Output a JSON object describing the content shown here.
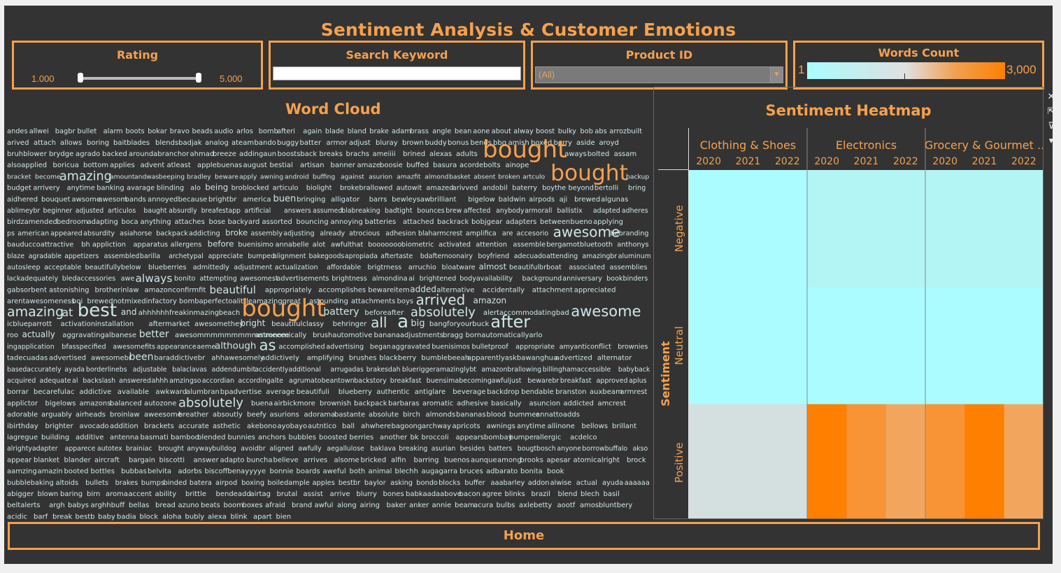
{
  "dashboard": {
    "title": "Sentiment Analysis & Customer Emotions",
    "home_label": "Home"
  },
  "filters": {
    "rating": {
      "label": "Rating",
      "min": "1.000",
      "max": "5.000",
      "selected_fraction_low": 0.0,
      "selected_fraction_high": 1.0
    },
    "search": {
      "label": "Search Keyword",
      "value": ""
    },
    "product": {
      "label": "Product ID",
      "value": "(All)"
    },
    "words_count": {
      "label": "Words Count",
      "min": "1",
      "max": "3,000"
    }
  },
  "colors": {
    "accent": "#f5a14d",
    "background": "#333333",
    "cloud_text": "#cfe7e7",
    "cloud_highlight": "#f5a14d",
    "cold": "#aafcff",
    "neutral": "#d2e2e0",
    "hot": "#ff7f00"
  },
  "word_cloud": {
    "title": "Word Cloud",
    "rows": [
      [
        "andes",
        "allwei",
        "bagbr",
        "bullet",
        "alarm",
        "boots",
        "bokar",
        "bravo",
        "beads",
        "audio",
        "arlos",
        "bomb",
        "afteri",
        "again",
        "blade",
        "bland",
        "brake",
        "adam",
        "brass",
        "angle",
        "bean",
        "aone",
        "about",
        "alway",
        "boost",
        "bulky",
        "bob",
        "abs",
        "arrozbuilt"
      ],
      [
        "arived",
        "attach",
        "allows",
        "boring",
        "baitblades",
        "blendsbadjak",
        "analog",
        "ateam",
        "bando",
        "buggy",
        "batter",
        "armor",
        "adjust",
        "bluray",
        "brown",
        "buddy",
        "bonus",
        "bends",
        "bbq",
        "amish",
        "boxed",
        "berry",
        "aside",
        "aroyd"
      ],
      [
        "bruhblower",
        "brydge",
        "agrado",
        "backed",
        "aroundabranchor",
        "ahmad",
        "breeze",
        "addingaun",
        "boostsback",
        "breaks",
        "brachs",
        "ameiiii",
        "brined",
        "alexas",
        "adults",
        "bought",
        "aways",
        "bolted",
        "assam"
      ],
      [
        "alsoapplied",
        "boricua",
        "bottom",
        "applies",
        "advent",
        "atleast",
        "applebuenas",
        "august",
        "bestial",
        "artisan",
        "banner",
        "amaze",
        "boosie",
        "buffed",
        "basura",
        "acordebolts",
        "ainope"
      ],
      [
        "bracket",
        "become",
        "amazing",
        "amount",
        "andwas",
        "beeping",
        "bradley",
        "beware",
        "apply",
        "awning",
        "android",
        "buffing",
        "against",
        "asurion",
        "amazfit",
        "almond",
        "basket",
        "absent",
        "broken",
        "artculo",
        "bought",
        "backup"
      ],
      [
        "budget",
        "arrivery",
        "anytime",
        "banking",
        "avarage",
        "blinding",
        "alo",
        "being",
        "broblocked",
        "articulo",
        "biolight",
        "brokebrallowed",
        "autowit",
        "amazed",
        "arivved",
        "andobil",
        "baterry",
        "boythe",
        "beyond",
        "bertolli",
        "bring"
      ],
      [
        "aidhered",
        "bouquet",
        "awsome",
        "awesom",
        "bands",
        "annoyed",
        "because",
        "brightbr",
        "america",
        "buen",
        "bringing",
        "alligator",
        "barrs",
        "bewleysaw",
        "brilliant",
        "bigelow",
        "baldwin",
        "airpods",
        "aji",
        "brewed",
        "algunas"
      ],
      [
        "ablimeybr",
        "beginner",
        "adjusted",
        "articulos",
        "baught",
        "absurdly",
        "breafestapp",
        "artificial",
        "answers",
        "assumed",
        "blabreaking",
        "badtight",
        "bounces",
        "brew",
        "affected",
        "anybody",
        "armorall",
        "ballistix",
        "adapted",
        "adheres"
      ],
      [
        "birdzamended",
        "bedroom",
        "adapting",
        "boca",
        "anything",
        "attaches",
        "bose",
        "backyard",
        "assorted",
        "bouncing",
        "annoying",
        "batteries",
        "attached",
        "backrack",
        "bobjgear",
        "adapters",
        "between",
        "bueno",
        "applying"
      ],
      [
        "ps",
        "american",
        "appeared",
        "absurdity",
        "asiahorse",
        "backpack",
        "addicting",
        "broke",
        "assembly",
        "adjusting",
        "already",
        "atrocious",
        "adhesion",
        "blaharmcrest",
        "amplifica",
        "are",
        "accesorio",
        "awesome",
        "bebranding"
      ],
      [
        "bauducco",
        "attractive",
        "bh",
        "appliction",
        "apparatus",
        "allergens",
        "before",
        "buenisimo",
        "annabelle",
        "alot",
        "awfulthat",
        "booooooo",
        "biometric",
        "activated",
        "attention",
        "assemble",
        "bergamot",
        "bluetooth",
        "anthonys"
      ],
      [
        "blaze",
        "agradable",
        "appetizers",
        "assembled",
        "barilla",
        "archetypal",
        "appreciate",
        "bumped",
        "alignment",
        "bakegoods",
        "apropiada",
        "aftertaste",
        "bdafternoonairy",
        "boyfriend",
        "adecuado",
        "attending",
        "amazingbr",
        "aluminum"
      ],
      [
        "autosleep",
        "acceptable",
        "beautifullybelow",
        "blueberries",
        "admittedly",
        "adjustment",
        "actualization",
        "affordable",
        "brigtrness",
        "arruchio",
        "bloatware",
        "almost",
        "beautifulbrboat",
        "associated",
        "assemblies"
      ],
      [
        "lackadequately",
        "bledaccessories",
        "awe",
        "always",
        "bonito",
        "attempting",
        "awesomest",
        "advertisements",
        "brightness",
        "almondina",
        "ai",
        "brightened",
        "bodyavailability",
        "background",
        "anniversary",
        "bookbinders"
      ],
      [
        "gabsorbent",
        "astonishing",
        "brotherinlaw",
        "amazonconfirmfit",
        "beautiful",
        "appropriately",
        "accomplishes",
        "bewareitem",
        "added",
        "alternative",
        "accidentally",
        "attachment",
        "appreciated"
      ],
      [
        "arentawesomeness",
        "boi",
        "brewednotmixedinfactory",
        "bombaperfecto",
        "alittleamazinggreat",
        "astounding",
        "attachments",
        "boys",
        "arrived",
        "amazon"
      ],
      [
        "amazing",
        "at",
        "best",
        "and",
        "ahhhhhhfreakinmazing",
        "beach",
        "bought",
        "battery",
        "beforeafter",
        "absolutely",
        "alertaccommodating",
        "bad",
        "awesome"
      ],
      [
        "icblueparrott",
        "activationinstallation",
        "aftermarket",
        "awesomethey",
        "bright",
        "beautifulclassy",
        "behringer",
        "all",
        "a",
        "big",
        "bangforyourbuck",
        "after"
      ],
      [
        "roo",
        "actually",
        "aggravatingalbanese",
        "better",
        "awesommmmmmmmmmmeeee",
        "astronomically",
        "brushautomotive",
        "bananaadjustments",
        "bragg",
        "bornautomaticallyarlo"
      ],
      [
        "ingapplication",
        "bfasspecified",
        "awesomefits",
        "appearance",
        "aeme",
        "although",
        "as",
        "accomplished",
        "advertising",
        "began",
        "aggravated",
        "buenisimos",
        "bulletproof",
        "appropriate",
        "amyanticonflict",
        "brownies"
      ],
      [
        "tadecuadas",
        "advertised",
        "awesomebr",
        "been",
        "baraddictivebr",
        "ahhawesomely",
        "addictively",
        "amplifying",
        "brushes",
        "blackberry",
        "bumblebeeah",
        "apparentlyaskbawanghua",
        "advertized",
        "alternator"
      ],
      [
        "basedaccurately",
        "ayada",
        "borderlinebs",
        "adjustable",
        "balaclavas",
        "addendumbit",
        "accidentlyadditional",
        "arrugadas",
        "brakesdah",
        "blueriggeramazinglybt",
        "amazonbrallowing",
        "billinghamaccessible",
        "babyback"
      ],
      [
        "acquired",
        "adequate",
        "al",
        "backslash",
        "answered",
        "ahhh",
        "amzingso",
        "accordian",
        "accordingalte",
        "agrumato",
        "beantown",
        "backstory",
        "breakfast",
        "buensima",
        "becoming",
        "awfuljust",
        "bewarebr",
        "breakfast",
        "approved",
        "aplus"
      ],
      [
        "borrar",
        "becarefulac",
        "addictive",
        "available",
        "awkward",
        "alumbran",
        "bpadvertise",
        "average",
        "beautifuli",
        "blueberry",
        "authentic",
        "antiglare",
        "beverage",
        "backdrop",
        "bendable",
        "branston",
        "auxbeam",
        "armrest"
      ],
      [
        "applictor",
        "bigelows",
        "amazons",
        "balanced",
        "autozone",
        "absolutely",
        "buena",
        "airbickmore",
        "brownish",
        "backpack",
        "barbaras",
        "aromatic",
        "adhesive",
        "basically",
        "asuncion",
        "addicted",
        "amcrest"
      ],
      [
        "adorable",
        "arguably",
        "airheads",
        "broinlaw",
        "aweesome",
        "breather",
        "absoutly",
        "beefy",
        "asurions",
        "adorama",
        "bastante",
        "absolute",
        "birch",
        "almonds",
        "bananas",
        "blood",
        "bummer",
        "annattoadds"
      ],
      [
        "ibirthday",
        "brighter",
        "avocado",
        "addition",
        "brackets",
        "accurate",
        "asthetic",
        "akebono",
        "ayobayo",
        "autntico",
        "ball",
        "ahwhere",
        "bagoong",
        "archway",
        "apricots",
        "awnings",
        "anytime",
        "allinone",
        "bellows",
        "brillant"
      ],
      [
        "iagregue",
        "building",
        "additive",
        "antenna",
        "basmati",
        "bamboo",
        "blended",
        "bunnies",
        "anchors",
        "bubbles",
        "boosted",
        "berries",
        "another",
        "bk",
        "broccoli",
        "appearsbombay",
        "bumper",
        "allergic",
        "acdelco"
      ],
      [
        "alrightyadapter",
        "apparece",
        "autotex",
        "brainiac",
        "brought",
        "anyway",
        "bulldog",
        "avoidbr",
        "aligned",
        "awfully",
        "aegallulose",
        "baklava",
        "breaking",
        "asurian",
        "besides",
        "batters",
        "bougtbosch",
        "anyone",
        "borrowbuffalo",
        "akso"
      ],
      [
        "appear",
        "blanket",
        "blander",
        "aircraft",
        "bargain",
        "biscotti",
        "answer",
        "adapto",
        "buncha",
        "believe",
        "arrives",
        "alsome",
        "bricked",
        "alfin",
        "barring",
        "buenos",
        "aunque",
        "among",
        "brooks",
        "apesar",
        "atomicalright",
        "brock"
      ],
      [
        "aamzing",
        "amazin",
        "booted",
        "bottles",
        "bubbas",
        "belvita",
        "adorbs",
        "biscoffbenayyyye",
        "bonnie",
        "boards",
        "aweful",
        "both",
        "animal",
        "blechh",
        "augagarra",
        "bruces",
        "adbarato",
        "bonita",
        "book"
      ],
      [
        "bubblebaking",
        "altoids",
        "bullets",
        "brakes",
        "bumps",
        "binded",
        "batera",
        "airpod",
        "boxing",
        "boiledample",
        "apples",
        "bestbr",
        "baylor",
        "asking",
        "bondo",
        "blocks",
        "buffer",
        "aaabarley",
        "addon",
        "alwise",
        "actual",
        "ayuda",
        "aaaaaa"
      ],
      [
        "abigger",
        "blown",
        "baring",
        "birn",
        "aroma",
        "accent",
        "ability",
        "brittle",
        "bendeadd",
        "airtag",
        "brutal",
        "assist",
        "arrive",
        "blurry",
        "bones",
        "babkaadaabove",
        "bacon",
        "agree",
        "blinks",
        "brazil",
        "blend",
        "blech",
        "basil"
      ],
      [
        "beltalerts",
        "argh",
        "babys",
        "arghhbuff",
        "bellas",
        "bread",
        "azuno",
        "beats",
        "boom",
        "boxes",
        "afraid",
        "brand",
        "awful",
        "along",
        "airing",
        "baker",
        "anker",
        "annie",
        "beam",
        "acura",
        "bulbs",
        "axlebetty",
        "aootf",
        "amos",
        "bluntbery"
      ],
      [
        "acidic",
        "barf",
        "break",
        "bestb",
        "baby",
        "badia",
        "block",
        "aloha",
        "bubly",
        "alexa",
        "blink",
        "apart",
        "bien"
      ]
    ]
  },
  "heatmap": {
    "title": "Sentiment Heatmap",
    "row_axis_label": "Sentiment",
    "categories": [
      "Clothing & Shoes",
      "Electronics",
      "Grocery & Gourmet .."
    ],
    "years": [
      "2020",
      "2021",
      "2022"
    ],
    "sentiments": [
      "Negative",
      "Neutral",
      "Positive"
    ],
    "cells": [
      [
        "#aafcff",
        "#aafcff",
        "#aafcff",
        "#b3f4f4",
        "#b3f4f4",
        "#b3f4f4",
        "#b3f4f4",
        "#b3f4f4",
        "#b3f4f4"
      ],
      [
        "#aafcff",
        "#aafcff",
        "#aafcff",
        "#aafcff",
        "#aafcff",
        "#aafcff",
        "#aafcff",
        "#aafcff",
        "#aafcff"
      ],
      [
        "#d3e0df",
        "#d3e0df",
        "#d3e0df",
        "#ff7f00",
        "#f89336",
        "#f2a65d",
        "#f89336",
        "#ff7f00",
        "#f2a65d"
      ]
    ],
    "side_icons": [
      "close-icon",
      "popout-icon",
      "filter-icon",
      "more-icon"
    ]
  }
}
